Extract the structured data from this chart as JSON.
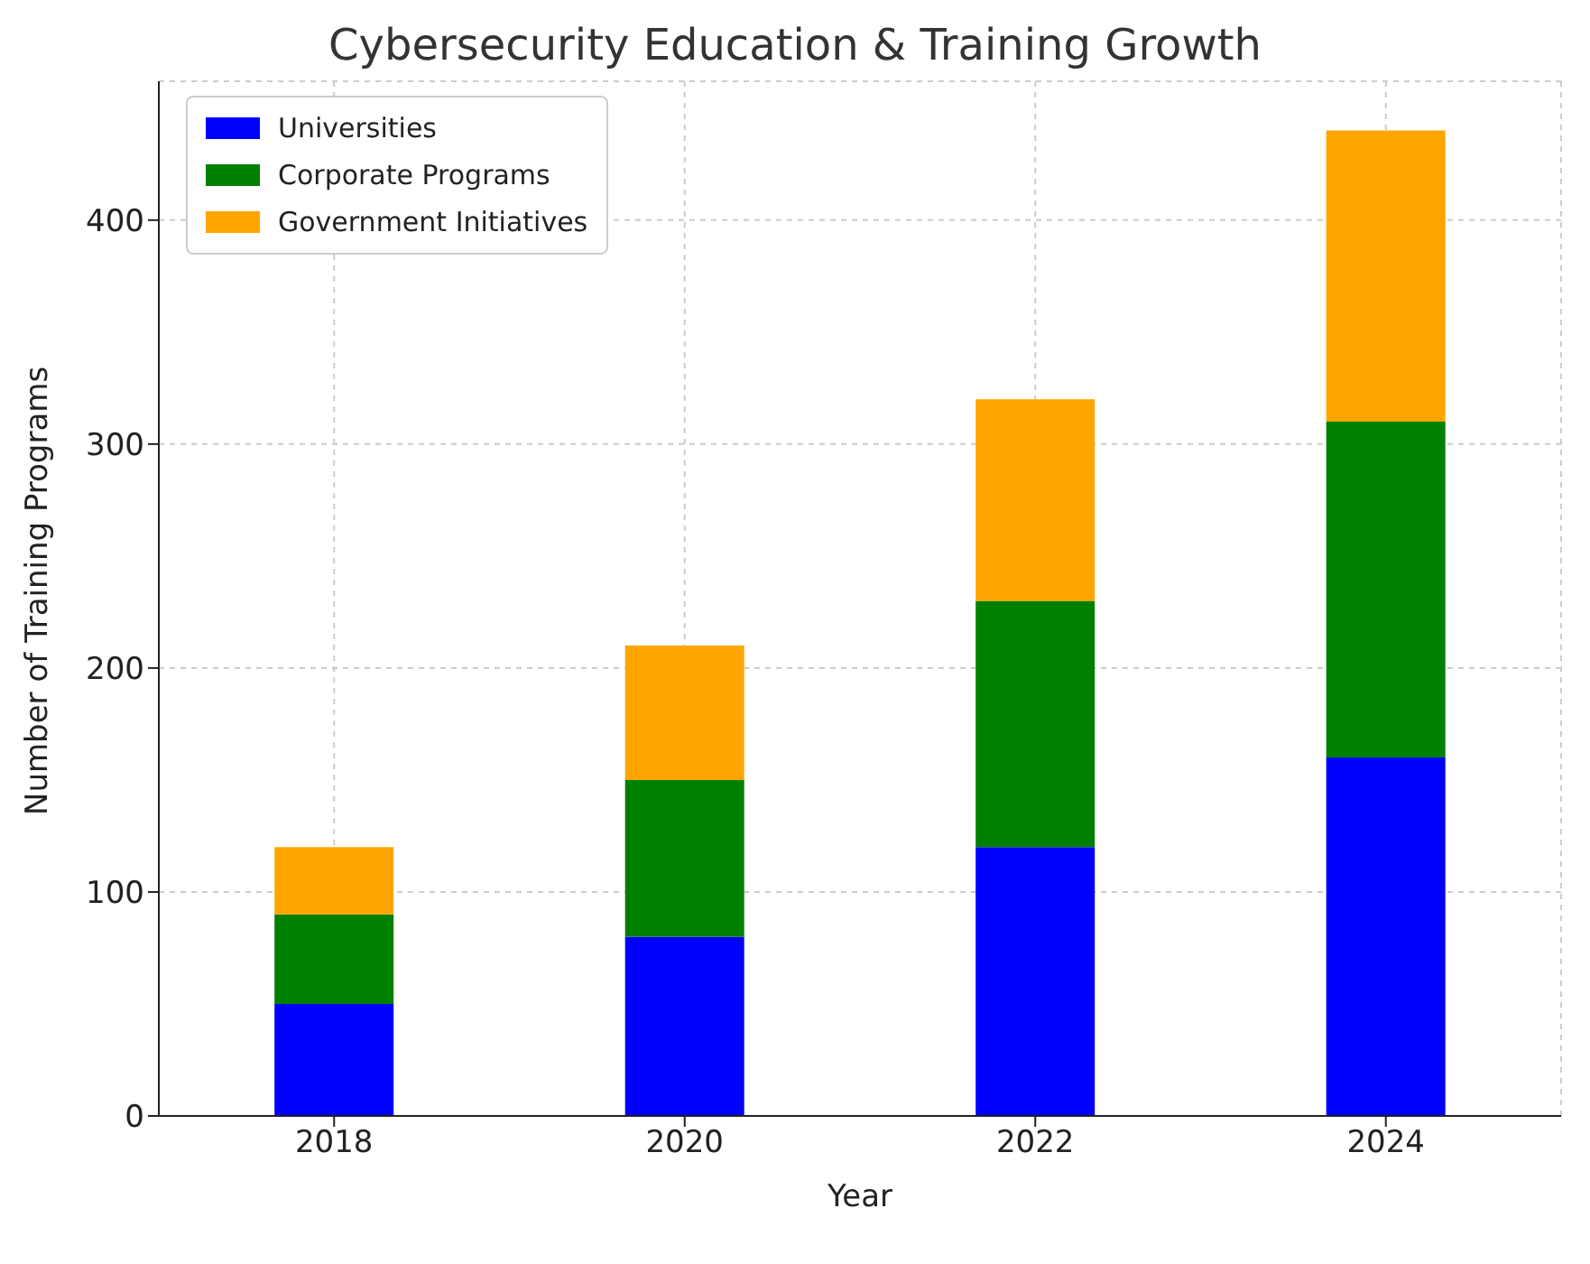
{
  "chart_data": {
    "type": "bar",
    "title": "Cybersecurity Education & Training Growth",
    "xlabel": "Year",
    "ylabel": "Number of Training Programs",
    "categories": [
      "2018",
      "2020",
      "2022",
      "2024"
    ],
    "stacked": true,
    "series": [
      {
        "name": "Universities",
        "color": "#0000ff",
        "values": [
          50,
          80,
          120,
          160
        ]
      },
      {
        "name": "Corporate Programs",
        "color": "#008000",
        "values": [
          40,
          70,
          110,
          150
        ]
      },
      {
        "name": "Government Initiatives",
        "color": "#ffa500",
        "values": [
          30,
          60,
          90,
          130
        ]
      }
    ],
    "ylim": [
      0,
      462
    ],
    "yticks": [
      0,
      100,
      200,
      300,
      400
    ],
    "grid": true,
    "legend": "top left"
  }
}
